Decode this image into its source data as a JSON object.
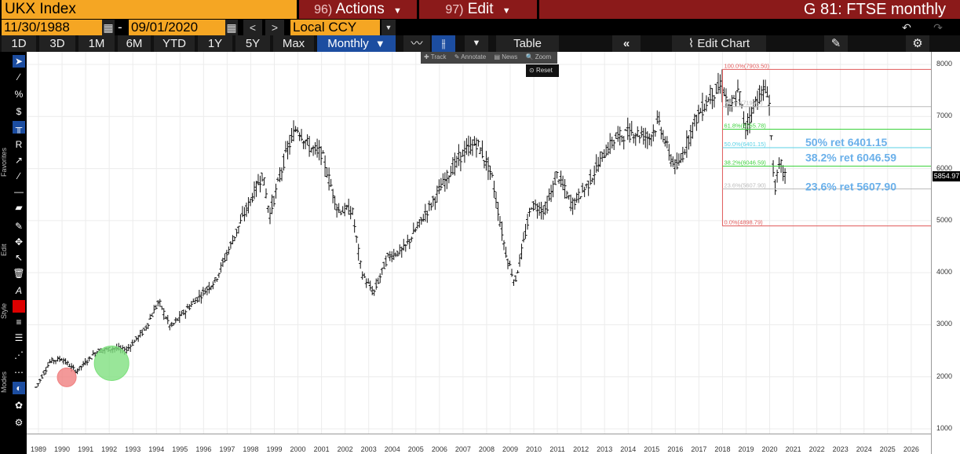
{
  "top": {
    "security": "UKX Index",
    "actions_num": "96)",
    "actions_label": "Actions",
    "edit_num": "97)",
    "edit_label": "Edit",
    "page_title": "G 81: FTSE monthly"
  },
  "range": {
    "start_date": "11/30/1988",
    "dash": "-",
    "end_date": "09/01/2020",
    "currency": "Local CCY"
  },
  "toolbar": {
    "periods": [
      "1D",
      "3D",
      "1M",
      "6M",
      "YTD",
      "1Y",
      "5Y",
      "Max"
    ],
    "frequency": "Monthly",
    "table_label": "Table",
    "edit_chart_label": "Edit Chart"
  },
  "popup": {
    "items": [
      "Track",
      "Annotate",
      "News",
      "Zoom"
    ],
    "reset": "Reset"
  },
  "left_panel": {
    "favorites": "Favorites",
    "edit": "Edit",
    "style": "Style",
    "modes": "Modes"
  },
  "chart_data": {
    "type": "ohlc",
    "frequency": "monthly",
    "ylim": [
      1000,
      8000
    ],
    "y_ticks": [
      1000,
      2000,
      3000,
      4000,
      5000,
      6000,
      7000,
      8000
    ],
    "x_ticks": [
      "1989",
      "1990",
      "1991",
      "1992",
      "1993",
      "1994",
      "1995",
      "1996",
      "1997",
      "1998",
      "1999",
      "2000",
      "2001",
      "2002",
      "2003",
      "2004",
      "2005",
      "2006",
      "2007",
      "2008",
      "2009",
      "2010",
      "2011",
      "2012",
      "2013",
      "2014",
      "2015",
      "2016",
      "2017",
      "2018",
      "2019",
      "2020",
      "2021",
      "2022",
      "2023",
      "2024",
      "2025",
      "2026"
    ],
    "last_price": "5854.97",
    "annual_path": [
      {
        "x": 1988.9,
        "y": 1800
      },
      {
        "x": 1989.5,
        "y": 2300
      },
      {
        "x": 1990.0,
        "y": 2350
      },
      {
        "x": 1990.6,
        "y": 2100
      },
      {
        "x": 1991.5,
        "y": 2500
      },
      {
        "x": 1992.3,
        "y": 2550
      },
      {
        "x": 1992.7,
        "y": 2500
      },
      {
        "x": 1993.5,
        "y": 2900
      },
      {
        "x": 1994.1,
        "y": 3450
      },
      {
        "x": 1994.6,
        "y": 2950
      },
      {
        "x": 1995.5,
        "y": 3400
      },
      {
        "x": 1996.5,
        "y": 3850
      },
      {
        "x": 1997.5,
        "y": 4900
      },
      {
        "x": 1998.5,
        "y": 5900
      },
      {
        "x": 1998.8,
        "y": 5100
      },
      {
        "x": 1999.5,
        "y": 6300
      },
      {
        "x": 1999.95,
        "y": 6800
      },
      {
        "x": 2000.5,
        "y": 6400
      },
      {
        "x": 2001.0,
        "y": 6300
      },
      {
        "x": 2001.7,
        "y": 5200
      },
      {
        "x": 2002.3,
        "y": 5200
      },
      {
        "x": 2002.7,
        "y": 4000
      },
      {
        "x": 2003.2,
        "y": 3600
      },
      {
        "x": 2003.8,
        "y": 4300
      },
      {
        "x": 2004.5,
        "y": 4450
      },
      {
        "x": 2005.5,
        "y": 5200
      },
      {
        "x": 2006.4,
        "y": 5900
      },
      {
        "x": 2007.0,
        "y": 6300
      },
      {
        "x": 2007.6,
        "y": 6500
      },
      {
        "x": 2008.2,
        "y": 5900
      },
      {
        "x": 2008.8,
        "y": 4400
      },
      {
        "x": 2009.2,
        "y": 3800
      },
      {
        "x": 2009.9,
        "y": 5300
      },
      {
        "x": 2010.5,
        "y": 5200
      },
      {
        "x": 2011.0,
        "y": 5900
      },
      {
        "x": 2011.6,
        "y": 5300
      },
      {
        "x": 2012.3,
        "y": 5700
      },
      {
        "x": 2013.0,
        "y": 6300
      },
      {
        "x": 2013.5,
        "y": 6600
      },
      {
        "x": 2014.2,
        "y": 6700
      },
      {
        "x": 2014.9,
        "y": 6600
      },
      {
        "x": 2015.3,
        "y": 6900
      },
      {
        "x": 2015.8,
        "y": 6200
      },
      {
        "x": 2016.1,
        "y": 6000
      },
      {
        "x": 2016.8,
        "y": 6900
      },
      {
        "x": 2017.5,
        "y": 7400
      },
      {
        "x": 2018.0,
        "y": 7600
      },
      {
        "x": 2018.3,
        "y": 7100
      },
      {
        "x": 2018.7,
        "y": 7500
      },
      {
        "x": 2018.95,
        "y": 6750
      },
      {
        "x": 2019.5,
        "y": 7400
      },
      {
        "x": 2019.95,
        "y": 7500
      },
      {
        "x": 2020.2,
        "y": 5600
      },
      {
        "x": 2020.45,
        "y": 6100
      },
      {
        "x": 2020.67,
        "y": 5855
      }
    ],
    "fib_levels": [
      {
        "pct": "100.0%",
        "value": 7903.5,
        "color": "#e05a5a"
      },
      {
        "pct": "76.4%",
        "value": 7190,
        "color": "#bbbbbb"
      },
      {
        "pct": "61.8%",
        "value": 6755.78,
        "color": "#3cd23c"
      },
      {
        "pct": "50.0%",
        "value": 6401.15,
        "color": "#5ad2e6"
      },
      {
        "pct": "38.2%",
        "value": 6046.59,
        "color": "#3cd23c"
      },
      {
        "pct": "23.6%",
        "value": 5607.9,
        "color": "#bbbbbb"
      },
      {
        "pct": "0.0%",
        "value": 4898.79,
        "color": "#e05a5a"
      }
    ],
    "fib_small_labels": [
      "100.0%(7903.50)",
      "76.4%(7190.0)",
      "61.8%(6755.78)",
      "50.0%(6401.15)",
      "38.2%(6046.59)",
      "23.6%(5607.90)",
      "0.0%(4898.79)"
    ],
    "annotations": [
      "50% ret 6401.15",
      "38.2% ret 6046.59",
      "23.6% ret 5607.90"
    ],
    "markers": [
      {
        "x": 1990.2,
        "y": 1990,
        "color": "#f08080",
        "name": "red-circle"
      },
      {
        "x": 1992.1,
        "y": 2260,
        "color": "#7fe07f",
        "name": "green-circle"
      }
    ]
  }
}
